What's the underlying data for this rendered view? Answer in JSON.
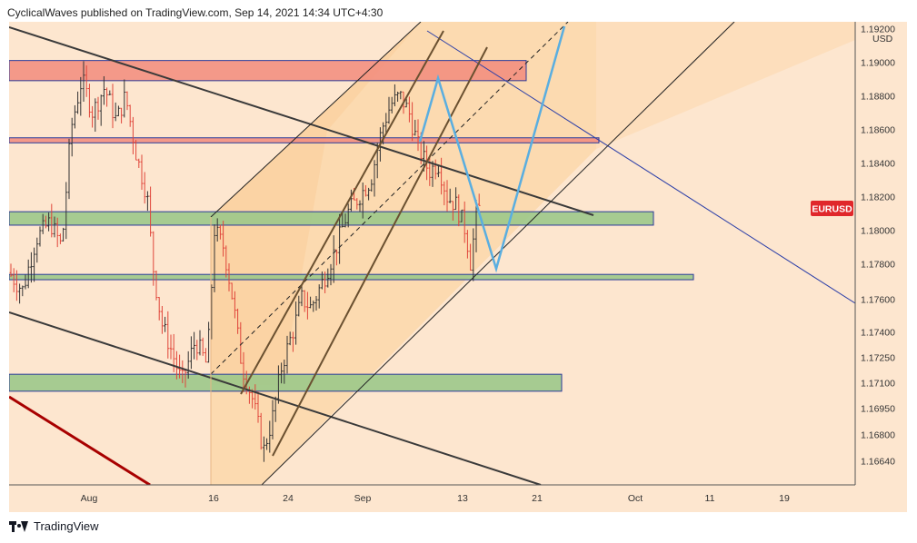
{
  "header": {
    "publisher": "CyclicalWaves published on TradingView.com, Sep 14, 2021 14:34 UTC+4:30"
  },
  "footer": {
    "brand": "TradingView",
    "icon": "tradingview-logo-icon"
  },
  "chart_data": {
    "type": "candlestick",
    "symbol_badge": "EURUSD",
    "currency": "USD",
    "title": "",
    "ylim": [
      1.1652,
      1.1915
    ],
    "y_ticks": [
      1.1664,
      1.168,
      1.1695,
      1.171,
      1.1725,
      1.174,
      1.176,
      1.178,
      1.18,
      1.182,
      1.184,
      1.186,
      1.188,
      1.19,
      1.192
    ],
    "y_tick_labels": [
      "1.16640",
      "1.16800",
      "1.16950",
      "1.17100",
      "1.17250",
      "1.17400",
      "1.17600",
      "1.17800",
      "1.18000",
      "1.18200",
      "1.18400",
      "1.18600",
      "1.18800",
      "1.19000",
      "1.19200"
    ],
    "x_labels": [
      "Aug",
      "16",
      "24",
      "Sep",
      "13",
      "21",
      "Oct",
      "11",
      "19"
    ],
    "grid": false,
    "colors": {
      "background": "#fde6cf",
      "up": "#333333",
      "down": "#e0453a",
      "badge": "#e0272b",
      "zone_red": "#f28b7d",
      "zone_green": "#9cc88a",
      "channel_fill": "#fbcf97",
      "projection": "#5aaee0",
      "trendline_blue": "#2c3fa8",
      "trendline_dark": "#3a3a3a",
      "trendline_darkred": "#a80000"
    },
    "zones": [
      {
        "name": "supply-zone-upper",
        "color": "red",
        "y": [
          1.1889,
          1.1901
        ]
      },
      {
        "name": "supply-zone-lower",
        "color": "red",
        "y": [
          1.1852,
          1.1855
        ]
      },
      {
        "name": "demand-zone-upper",
        "color": "green",
        "y": [
          1.1803,
          1.1811
        ]
      },
      {
        "name": "demand-zone-middle",
        "color": "green",
        "y": [
          1.1771,
          1.1774
        ]
      },
      {
        "name": "demand-zone-lower",
        "color": "green",
        "y": [
          1.1705,
          1.1715
        ]
      }
    ]
  }
}
